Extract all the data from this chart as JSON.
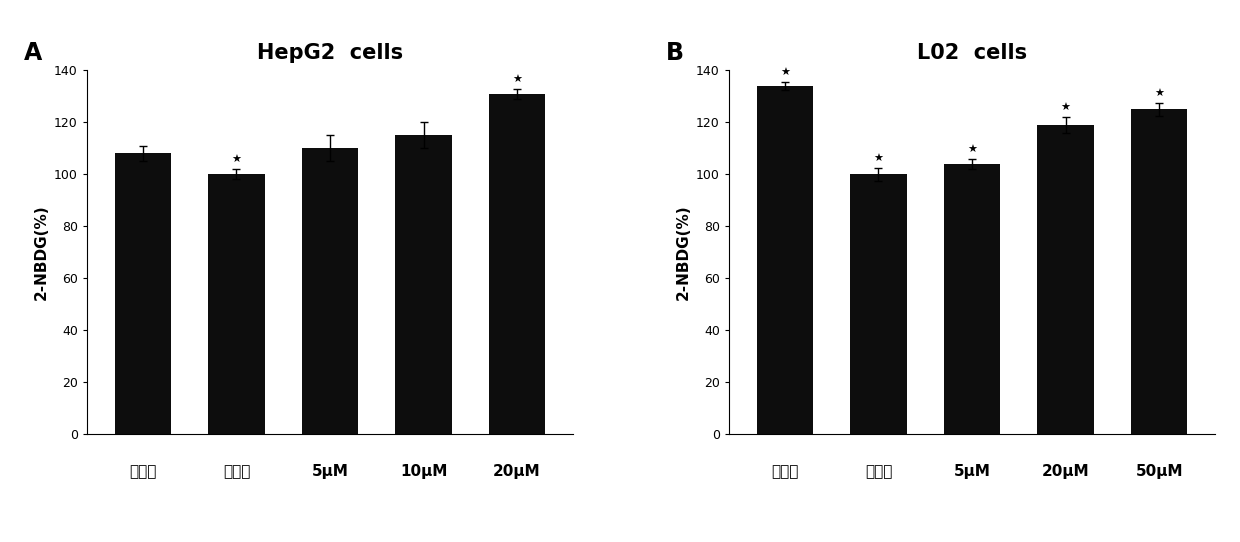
{
  "panel_A": {
    "title": "HepG2  cells",
    "label": "A",
    "categories": [
      "正常组",
      "模型组",
      "5μM",
      "10μM",
      "20μM"
    ],
    "values": [
      108,
      100,
      110,
      115,
      131
    ],
    "errors": [
      3,
      2,
      5,
      5,
      2
    ],
    "star": [
      false,
      true,
      false,
      false,
      true
    ],
    "bar_color": "#0d0d0d",
    "ylim": [
      0,
      140
    ],
    "yticks": [
      0,
      20,
      40,
      60,
      80,
      100,
      120,
      140
    ],
    "ylabel": "2-NBDG(%)"
  },
  "panel_B": {
    "title": "L02  cells",
    "label": "B",
    "categories": [
      "正常组",
      "模型组",
      "5μM",
      "20μM",
      "50μM"
    ],
    "values": [
      134,
      100,
      104,
      119,
      125
    ],
    "errors": [
      1.5,
      2.5,
      2,
      3,
      2.5
    ],
    "star": [
      true,
      true,
      true,
      true,
      true
    ],
    "bar_color": "#0d0d0d",
    "ylim": [
      0,
      140
    ],
    "yticks": [
      0,
      20,
      40,
      60,
      80,
      100,
      120,
      140
    ],
    "ylabel": "2-NBDG(%)"
  },
  "background_color": "#ffffff",
  "figure_width": 12.4,
  "figure_height": 5.42,
  "dpi": 100
}
